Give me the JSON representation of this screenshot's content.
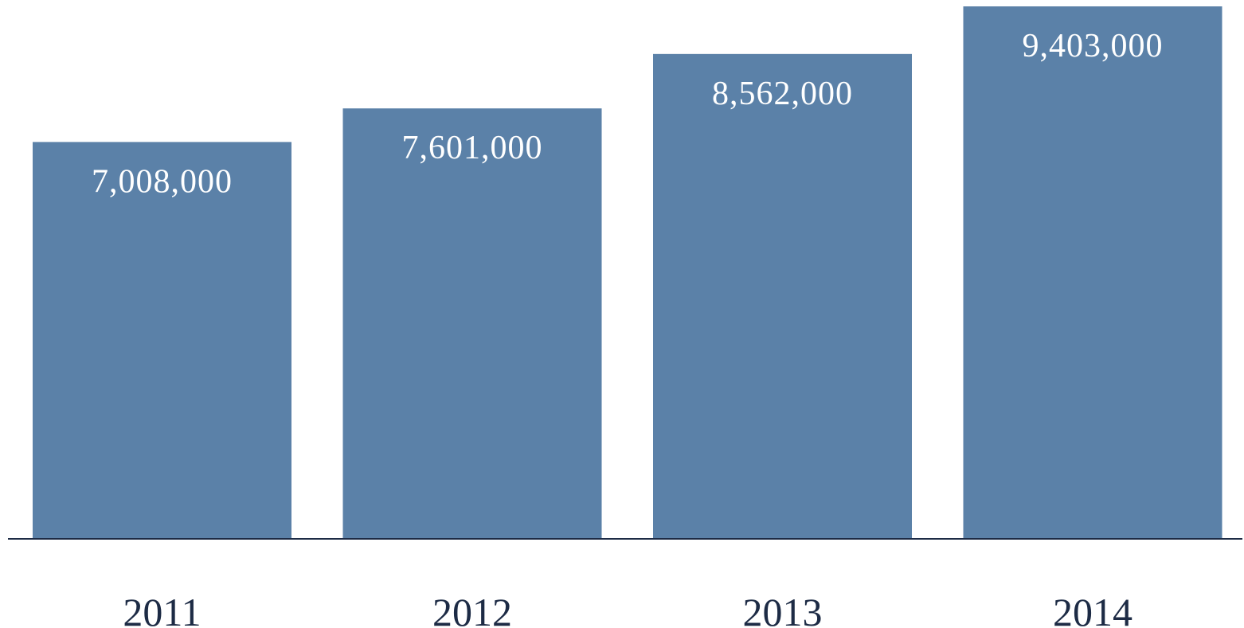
{
  "chart_data": {
    "type": "bar",
    "categories": [
      "2011",
      "2012",
      "2013",
      "2014"
    ],
    "values": [
      7008000,
      7601000,
      8562000,
      9403000
    ],
    "value_labels": [
      "7,008,000",
      "7,601,000",
      "8,562,000",
      "9,403,000"
    ],
    "title": "",
    "xlabel": "",
    "ylabel": "",
    "ylim": [
      0,
      9403000
    ],
    "grid": false,
    "legend": "none",
    "colors": {
      "bar": "#5b81a8",
      "axis": "#1d2b45",
      "category_text": "#1d2b45",
      "value_text": "#ffffff"
    }
  }
}
